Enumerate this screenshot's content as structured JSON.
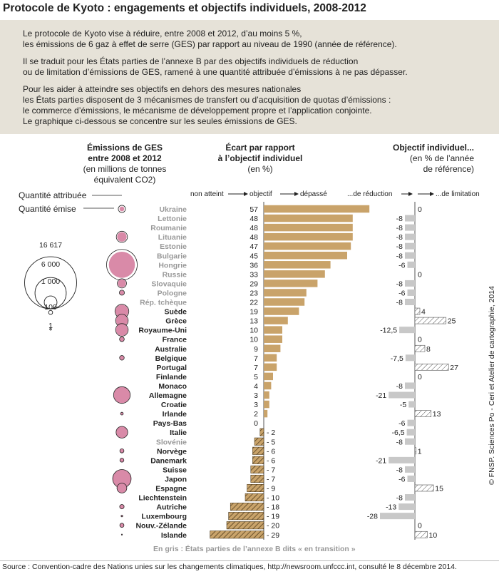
{
  "title": "Protocole de Kyoto : engagements et objectifs individuels, 2008-2012",
  "intro": [
    "Le protocole de Kyoto vise à réduire, entre 2008 et 2012, d’au moins 5 %,",
    "les émissions de 6 gaz à effet de serre (GES) par rapport au niveau de 1990 (année de référence).",
    "Il se traduit pour les États parties de l’annexe B par des objectifs individuels de réduction",
    "ou de limitation d’émissions de GES, ramené à une quantité attribuée d’émissions à ne pas dépasser.",
    "Pour les aider à atteindre ses objectifs en dehors des mesures nationales",
    "les États parties disposent de 3 mécanismes de transfert ou d’acquisition de quotas d’émissions :",
    "le commerce d’émissions, le mécanisme de développement propre et l’application conjointe.",
    "Le graphique ci-dessous se concentre sur les seules émissions de GES."
  ],
  "headers": {
    "emissions": {
      "l1": "Émissions de GES",
      "l2": "entre 2008 et 2012",
      "l3": "(en millions de tonnes",
      "l4": "équivalent CO2)"
    },
    "ecart": {
      "l1": "Écart par rapport",
      "l2": "à l’objectif individuel",
      "l3": "(en %)"
    },
    "objectif": {
      "l1": "Objectif individuel...",
      "l2": "(en % de l’année",
      "l3": "de référence)"
    }
  },
  "axis_labels": {
    "non_atteint": "non atteint",
    "objectif": "objectif",
    "depasse": "dépassé",
    "reduction": "...de réduction",
    "limitation": "...de limitation"
  },
  "legend": {
    "attribuee": "Quantité attribuée",
    "emise": "Quantité émise",
    "sizes": [
      "16 617",
      "6 000",
      "1 000",
      "100",
      "1"
    ]
  },
  "note": "En gris : États parties de l’annexe B dits « en transition »",
  "source": "Source : Convention-cadre des Nations unies sur les changements climatiques, http://newsroom.unfccc.int, consulté le 8 décembre 2014.",
  "copyright": "© FNSP. Sciences Po - Ceri et Atelier de cartographie, 2014",
  "colors": {
    "bar": "#c9a36a",
    "reduction": "#c8c8c8",
    "emitted": "#d98aa8",
    "transition_text": "#999999",
    "background": "#e6e2d8"
  },
  "chart_data": {
    "type": "bar",
    "countries": [
      "Ukraine",
      "Lettonie",
      "Roumanie",
      "Lituanie",
      "Estonie",
      "Bulgarie",
      "Hongrie",
      "Russie",
      "Slovaquie",
      "Pologne",
      "Rép. tchèque",
      "Suède",
      "Grèce",
      "Royaume-Uni",
      "France",
      "Australie",
      "Belgique",
      "Portugal",
      "Finlande",
      "Monaco",
      "Allemagne",
      "Croatie",
      "Irlande",
      "Pays-Bas",
      "Italie",
      "Slovénie",
      "Norvège",
      "Danemark",
      "Suisse",
      "Japon",
      "Espagne",
      "Liechtenstein",
      "Autriche",
      "Luxembourg",
      "Nouv.-Zélande",
      "Islande"
    ],
    "in_transition": [
      true,
      true,
      true,
      true,
      true,
      true,
      true,
      true,
      true,
      true,
      true,
      false,
      false,
      false,
      false,
      false,
      false,
      false,
      false,
      false,
      false,
      false,
      false,
      false,
      false,
      true,
      false,
      false,
      false,
      false,
      false,
      false,
      false,
      false,
      false,
      false
    ],
    "ecart_labels": [
      "57",
      "48",
      "48",
      "48",
      "47",
      "45",
      "36",
      "33",
      "29",
      "23",
      "22",
      "19",
      "13",
      "10",
      "10",
      "9",
      "7",
      "7",
      "5",
      "4",
      "3",
      "3",
      "2",
      "0",
      "- 2",
      "- 5",
      "- 6",
      "- 6",
      "- 7",
      "- 7",
      "- 9",
      "- 10",
      "- 18",
      "- 19",
      "- 20",
      "- 29"
    ],
    "ecart_values": [
      57,
      48,
      48,
      48,
      47,
      45,
      36,
      33,
      29,
      23,
      22,
      19,
      13,
      10,
      10,
      9,
      7,
      7,
      5,
      4,
      3,
      3,
      2,
      0,
      -2,
      -5,
      -6,
      -6,
      -7,
      -7,
      -9,
      -10,
      -18,
      -19,
      -20,
      -29
    ],
    "objectif_labels": [
      "0",
      "-8",
      "-8",
      "-8",
      "-8",
      "-8",
      "-6",
      "0",
      "-8",
      "-6",
      "-8",
      "4",
      "25",
      "-12,5",
      "0",
      "8",
      "-7,5",
      "27",
      "0",
      "-8",
      "-21",
      "-5",
      "13",
      "-6",
      "-6,5",
      "-8",
      "1",
      "-21",
      "-8",
      "-6",
      "15",
      "-8",
      "-13",
      "-28",
      "0",
      "10"
    ],
    "objectif_values": [
      0,
      -8,
      -8,
      -8,
      -8,
      -8,
      -6,
      0,
      -8,
      -6,
      -8,
      4,
      25,
      -12.5,
      0,
      8,
      -7.5,
      27,
      0,
      -8,
      -21,
      -5,
      13,
      -6,
      -6.5,
      -8,
      1,
      -21,
      -8,
      -6,
      15,
      -8,
      -13,
      -28,
      0,
      10
    ],
    "circles": [
      {
        "row": 1,
        "attributed": 920,
        "emitted": 400
      },
      {
        "row": 4,
        "attributed": 2200,
        "emitted": 1600
      },
      {
        "row": 7,
        "attributed": 16617,
        "emitted": 12000
      },
      {
        "row": 9,
        "attributed": 1500,
        "emitted": 1150
      },
      {
        "row": 10,
        "attributed": 450,
        "emitted": 350
      },
      {
        "row": 12,
        "attributed": 3400,
        "emitted": 3000
      },
      {
        "row": 13,
        "attributed": 2800,
        "emitted": 2500
      },
      {
        "row": 14,
        "attributed": 2800,
        "emitted": 2500
      },
      {
        "row": 15,
        "attributed": 400,
        "emitted": 380
      },
      {
        "row": 17,
        "attributed": 380,
        "emitted": 360
      },
      {
        "row": 21,
        "attributed": 4900,
        "emitted": 4700
      },
      {
        "row": 23,
        "attributed": 130,
        "emitted": 120
      },
      {
        "row": 25,
        "attributed": 2400,
        "emitted": 2450
      },
      {
        "row": 27,
        "attributed": 300,
        "emitted": 310
      },
      {
        "row": 28,
        "attributed": 280,
        "emitted": 290
      },
      {
        "row": 30,
        "attributed": 6000,
        "emitted": 6200
      },
      {
        "row": 31,
        "attributed": 1700,
        "emitted": 1800
      },
      {
        "row": 33,
        "attributed": 340,
        "emitted": 380
      },
      {
        "row": 34,
        "attributed": 50,
        "emitted": 60
      },
      {
        "row": 35,
        "attributed": 300,
        "emitted": 330
      },
      {
        "row": 36,
        "attributed": 18,
        "emitted": 22
      }
    ]
  }
}
